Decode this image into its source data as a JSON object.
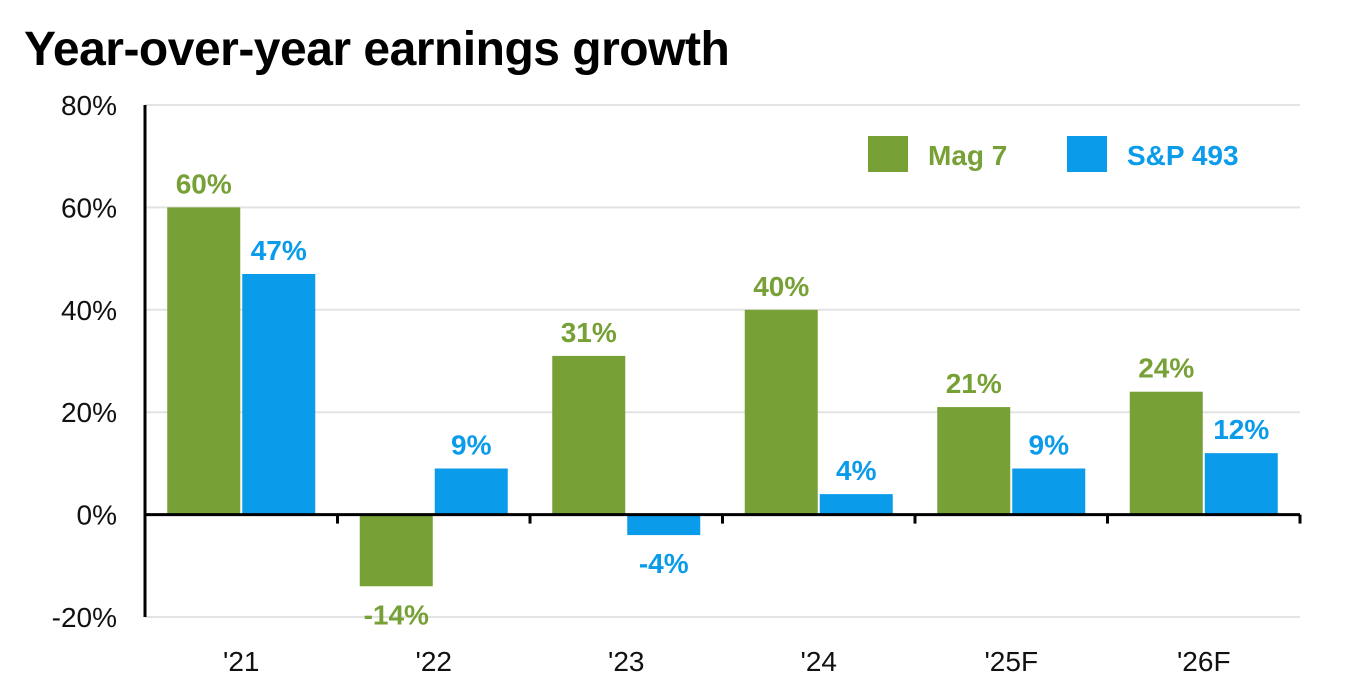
{
  "chart_data": {
    "type": "bar",
    "title": "Year-over-year earnings growth",
    "categories": [
      "'21",
      "'22",
      "'23",
      "'24",
      "'25F",
      "'26F"
    ],
    "series": [
      {
        "name": "Mag 7",
        "values": [
          60,
          -14,
          31,
          40,
          21,
          24
        ],
        "labels": [
          "60%",
          "-14%",
          "31%",
          "40%",
          "21%",
          "24%"
        ],
        "color": "#77A136"
      },
      {
        "name": "S&P 493",
        "values": [
          47,
          9,
          -4,
          4,
          9,
          12
        ],
        "labels": [
          "47%",
          "9%",
          "-4%",
          "4%",
          "9%",
          "12%"
        ],
        "color": "#0A9BEA"
      }
    ],
    "ylim": [
      -20,
      80
    ],
    "yticks": [
      80,
      60,
      40,
      20,
      0,
      -20
    ],
    "ytick_labels": [
      "80%",
      "60%",
      "40%",
      "20%",
      "0%",
      "-20%"
    ],
    "xlabel": "",
    "ylabel": "",
    "grid": true,
    "legend_position": "top-right"
  }
}
